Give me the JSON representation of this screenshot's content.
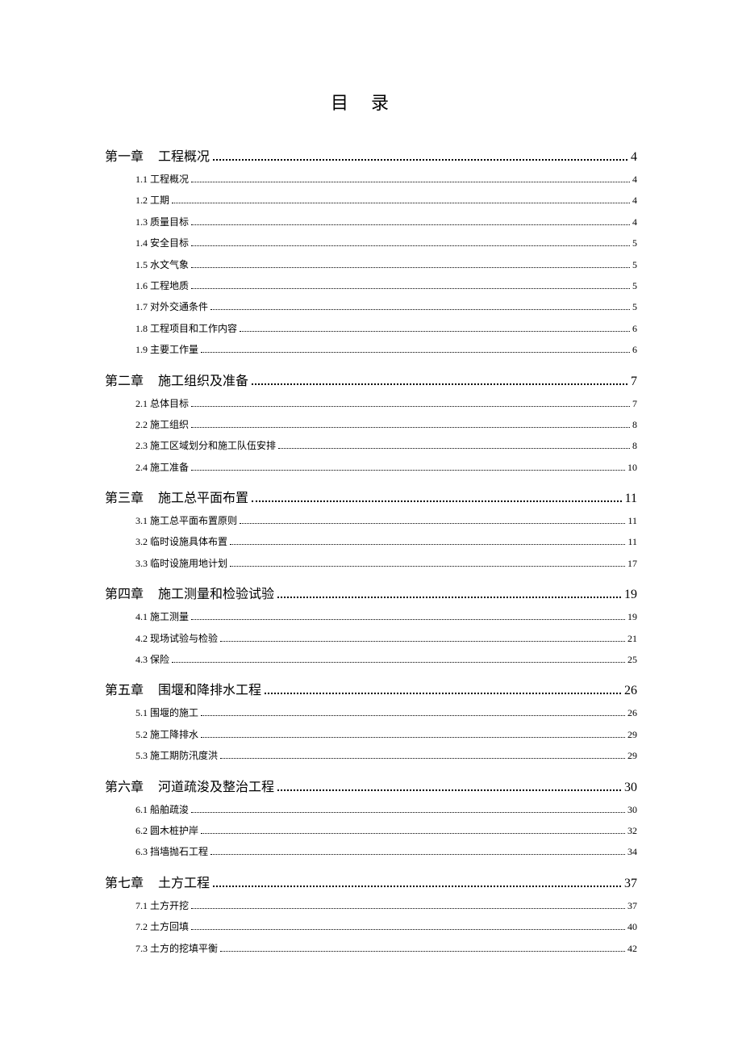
{
  "title": "目录",
  "chapters": [
    {
      "label": "第一章",
      "name": "工程概况",
      "page": "4",
      "sections": [
        {
          "label": "1.1 工程概况",
          "page": "4"
        },
        {
          "label": "1.2 工期",
          "page": "4"
        },
        {
          "label": "1.3 质量目标",
          "page": "4"
        },
        {
          "label": "1.4 安全目标",
          "page": "5"
        },
        {
          "label": "1.5 水文气象",
          "page": "5"
        },
        {
          "label": "1.6 工程地质",
          "page": "5"
        },
        {
          "label": "1.7 对外交通条件",
          "page": "5"
        },
        {
          "label": "1.8 工程项目和工作内容",
          "page": "6"
        },
        {
          "label": "1.9 主要工作量",
          "page": "6"
        }
      ]
    },
    {
      "label": "第二章",
      "name": "施工组织及准备",
      "page": "7",
      "sections": [
        {
          "label": "2.1 总体目标",
          "page": "7"
        },
        {
          "label": "2.2 施工组织",
          "page": "8"
        },
        {
          "label": "2.3 施工区域划分和施工队伍安排",
          "page": "8"
        },
        {
          "label": "2.4 施工准备",
          "page": "10"
        }
      ]
    },
    {
      "label": "第三章",
      "name": "施工总平面布置",
      "page": "11",
      "sections": [
        {
          "label": "3.1 施工总平面布置原则",
          "page": "11"
        },
        {
          "label": "3.2 临时设施具体布置",
          "page": "11"
        },
        {
          "label": "3.3 临时设施用地计划",
          "page": "17"
        }
      ]
    },
    {
      "label": "第四章",
      "name": "施工测量和检验试验",
      "page": "19",
      "sections": [
        {
          "label": "4.1 施工测量",
          "page": "19"
        },
        {
          "label": "4.2 现场试验与检验",
          "page": "21"
        },
        {
          "label": "4.3 保险",
          "page": "25"
        }
      ]
    },
    {
      "label": "第五章",
      "name": "围堰和降排水工程",
      "page": "26",
      "sections": [
        {
          "label": "5.1 围堰的施工",
          "page": "26"
        },
        {
          "label": "5.2 施工降排水",
          "page": "29"
        },
        {
          "label": "5.3 施工期防汛度洪",
          "page": "29"
        }
      ]
    },
    {
      "label": "第六章",
      "name": "河道疏浚及整治工程",
      "page": "30",
      "sections": [
        {
          "label": "6.1 船舶疏浚",
          "page": "30"
        },
        {
          "label": "6.2 圆木桩护岸",
          "page": "32"
        },
        {
          "label": "6.3 挡墙抛石工程",
          "page": "34"
        }
      ]
    },
    {
      "label": "第七章",
      "name": "土方工程",
      "page": "37",
      "sections": [
        {
          "label": "7.1 土方开挖",
          "page": "37"
        },
        {
          "label": "7.2 土方回填",
          "page": "40"
        },
        {
          "label": "7.3 土方的挖填平衡",
          "page": "42"
        }
      ]
    }
  ],
  "colors": {
    "text": "#000000",
    "background": "#ffffff"
  },
  "typography": {
    "title_fontsize": 22,
    "chapter_fontsize": 16,
    "section_fontsize": 12,
    "font_family": "SimSun"
  }
}
